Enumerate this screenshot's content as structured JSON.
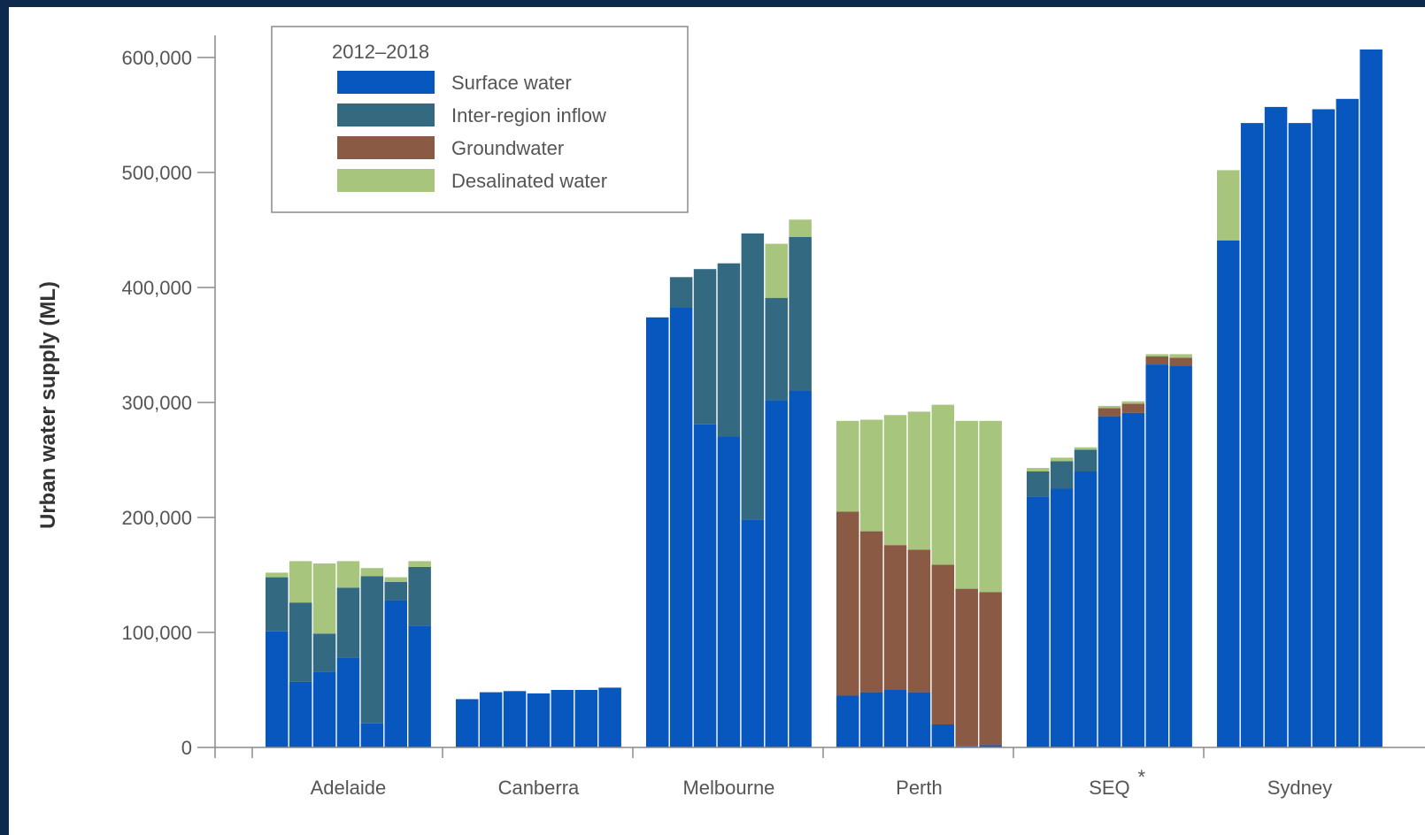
{
  "chart_data": {
    "type": "bar",
    "stacked": true,
    "ylabel": "Urban water supply (ML)",
    "ylim": [
      0,
      600000
    ],
    "yticks": [
      0,
      100000,
      200000,
      300000,
      400000,
      500000,
      600000
    ],
    "ytick_labels": [
      "0",
      "100,000",
      "200,000",
      "300,000",
      "400,000",
      "500,000",
      "600,000"
    ],
    "legend": {
      "title": "2012–2018",
      "placement": "top-left",
      "entries": [
        "Surface water",
        "Inter-region inflow",
        "Groundwater",
        "Desalinated water"
      ]
    },
    "colors": {
      "Surface water": "#0857bf",
      "Inter-region inflow": "#336a82",
      "Groundwater": "#8b5a45",
      "Desalinated water": "#a8c57e"
    },
    "categories": [
      {
        "label": "Adelaide",
        "note": "",
        "bars": [
          {
            "Surface water": 101000,
            "Inter-region inflow": 47000,
            "Groundwater": 0,
            "Desalinated water": 4000
          },
          {
            "Surface water": 57000,
            "Inter-region inflow": 69000,
            "Groundwater": 0,
            "Desalinated water": 36000
          },
          {
            "Surface water": 66000,
            "Inter-region inflow": 33000,
            "Groundwater": 0,
            "Desalinated water": 61000
          },
          {
            "Surface water": 78000,
            "Inter-region inflow": 61000,
            "Groundwater": 0,
            "Desalinated water": 23000
          },
          {
            "Surface water": 21000,
            "Inter-region inflow": 128000,
            "Groundwater": 0,
            "Desalinated water": 7000
          },
          {
            "Surface water": 128000,
            "Inter-region inflow": 16000,
            "Groundwater": 0,
            "Desalinated water": 4000
          },
          {
            "Surface water": 106000,
            "Inter-region inflow": 51000,
            "Groundwater": 0,
            "Desalinated water": 5000
          }
        ]
      },
      {
        "label": "Canberra",
        "note": "",
        "bars": [
          {
            "Surface water": 42000,
            "Inter-region inflow": 0,
            "Groundwater": 0,
            "Desalinated water": 0
          },
          {
            "Surface water": 48000,
            "Inter-region inflow": 0,
            "Groundwater": 0,
            "Desalinated water": 0
          },
          {
            "Surface water": 49000,
            "Inter-region inflow": 0,
            "Groundwater": 0,
            "Desalinated water": 0
          },
          {
            "Surface water": 47000,
            "Inter-region inflow": 0,
            "Groundwater": 0,
            "Desalinated water": 0
          },
          {
            "Surface water": 50000,
            "Inter-region inflow": 0,
            "Groundwater": 0,
            "Desalinated water": 0
          },
          {
            "Surface water": 50000,
            "Inter-region inflow": 0,
            "Groundwater": 0,
            "Desalinated water": 0
          },
          {
            "Surface water": 52000,
            "Inter-region inflow": 0,
            "Groundwater": 0,
            "Desalinated water": 0
          }
        ]
      },
      {
        "label": "Melbourne",
        "note": "",
        "bars": [
          {
            "Surface water": 374000,
            "Inter-region inflow": 0,
            "Groundwater": 0,
            "Desalinated water": 0
          },
          {
            "Surface water": 383000,
            "Inter-region inflow": 26000,
            "Groundwater": 0,
            "Desalinated water": 0
          },
          {
            "Surface water": 281000,
            "Inter-region inflow": 135000,
            "Groundwater": 0,
            "Desalinated water": 0
          },
          {
            "Surface water": 270000,
            "Inter-region inflow": 151000,
            "Groundwater": 0,
            "Desalinated water": 0
          },
          {
            "Surface water": 198000,
            "Inter-region inflow": 249000,
            "Groundwater": 0,
            "Desalinated water": 0
          },
          {
            "Surface water": 302000,
            "Inter-region inflow": 89000,
            "Groundwater": 0,
            "Desalinated water": 47000
          },
          {
            "Surface water": 310000,
            "Inter-region inflow": 134000,
            "Groundwater": 0,
            "Desalinated water": 15000
          }
        ]
      },
      {
        "label": "Perth",
        "note": "",
        "bars": [
          {
            "Surface water": 45000,
            "Inter-region inflow": 0,
            "Groundwater": 160000,
            "Desalinated water": 79000
          },
          {
            "Surface water": 48000,
            "Inter-region inflow": 0,
            "Groundwater": 140000,
            "Desalinated water": 97000
          },
          {
            "Surface water": 50000,
            "Inter-region inflow": 0,
            "Groundwater": 126000,
            "Desalinated water": 113000
          },
          {
            "Surface water": 48000,
            "Inter-region inflow": 0,
            "Groundwater": 124000,
            "Desalinated water": 120000
          },
          {
            "Surface water": 20000,
            "Inter-region inflow": 0,
            "Groundwater": 139000,
            "Desalinated water": 139000
          },
          {
            "Surface water": 1000,
            "Inter-region inflow": 0,
            "Groundwater": 137000,
            "Desalinated water": 146000
          },
          {
            "Surface water": 2000,
            "Inter-region inflow": 0,
            "Groundwater": 133000,
            "Desalinated water": 149000
          }
        ]
      },
      {
        "label": "SEQ",
        "note": "*",
        "bars": [
          {
            "Surface water": 218000,
            "Inter-region inflow": 22000,
            "Groundwater": 0,
            "Desalinated water": 3000
          },
          {
            "Surface water": 225000,
            "Inter-region inflow": 24000,
            "Groundwater": 0,
            "Desalinated water": 3000
          },
          {
            "Surface water": 240000,
            "Inter-region inflow": 19000,
            "Groundwater": 0,
            "Desalinated water": 2000
          },
          {
            "Surface water": 288000,
            "Inter-region inflow": 0,
            "Groundwater": 7000,
            "Desalinated water": 2000
          },
          {
            "Surface water": 291000,
            "Inter-region inflow": 0,
            "Groundwater": 8000,
            "Desalinated water": 2000
          },
          {
            "Surface water": 333000,
            "Inter-region inflow": 0,
            "Groundwater": 7000,
            "Desalinated water": 2000
          },
          {
            "Surface water": 332000,
            "Inter-region inflow": 0,
            "Groundwater": 7000,
            "Desalinated water": 3000
          }
        ]
      },
      {
        "label": "Sydney",
        "note": "",
        "bars": [
          {
            "Surface water": 441000,
            "Inter-region inflow": 0,
            "Groundwater": 0,
            "Desalinated water": 61000
          },
          {
            "Surface water": 543000,
            "Inter-region inflow": 0,
            "Groundwater": 0,
            "Desalinated water": 0
          },
          {
            "Surface water": 557000,
            "Inter-region inflow": 0,
            "Groundwater": 0,
            "Desalinated water": 0
          },
          {
            "Surface water": 543000,
            "Inter-region inflow": 0,
            "Groundwater": 0,
            "Desalinated water": 0
          },
          {
            "Surface water": 555000,
            "Inter-region inflow": 0,
            "Groundwater": 0,
            "Desalinated water": 0
          },
          {
            "Surface water": 564000,
            "Inter-region inflow": 0,
            "Groundwater": 0,
            "Desalinated water": 0
          },
          {
            "Surface water": 607000,
            "Inter-region inflow": 0,
            "Groundwater": 0,
            "Desalinated water": 0
          }
        ]
      }
    ]
  }
}
